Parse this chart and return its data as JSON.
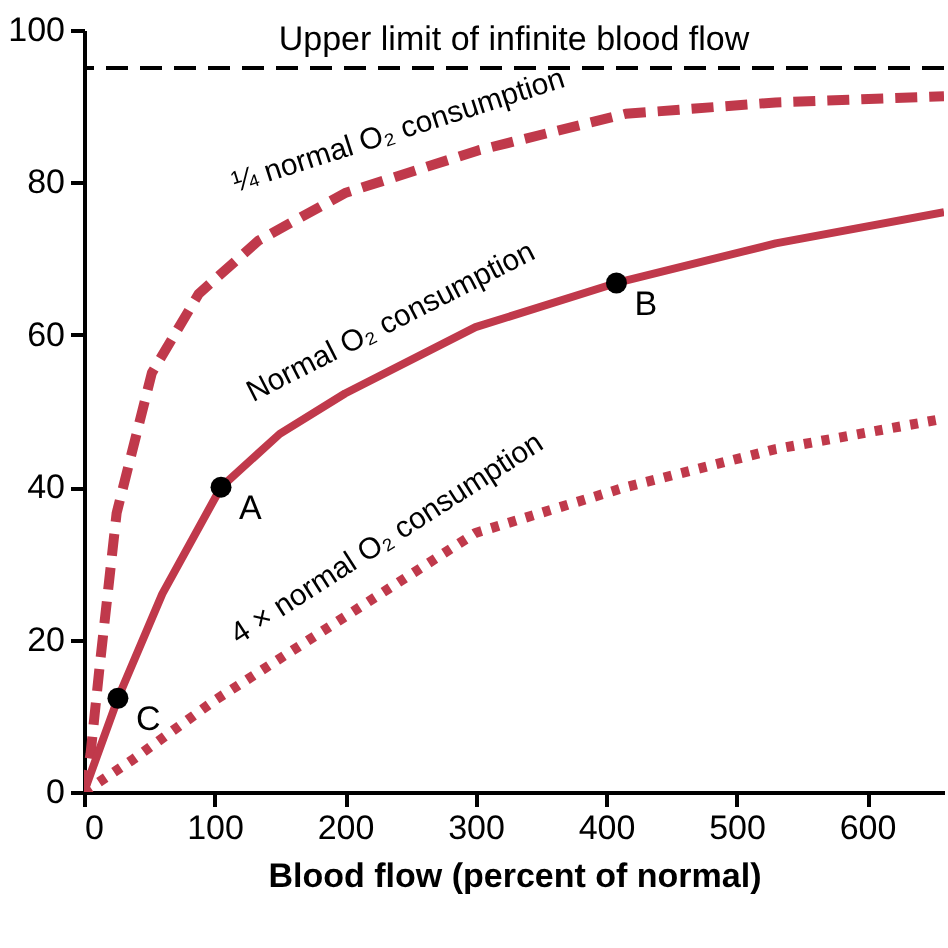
{
  "chart_data": {
    "type": "line",
    "xlabel": "Blood flow (percent of normal)",
    "xlim": [
      0,
      659
    ],
    "ylim": [
      0,
      100
    ],
    "xticks": [
      0,
      100,
      200,
      300,
      400,
      500,
      600
    ],
    "yticks": [
      0,
      20,
      40,
      60,
      80,
      100
    ],
    "grid": false,
    "series": [
      {
        "name": "¼ normal O₂ consumption",
        "color": "#c0394b",
        "line_style": "dashed",
        "x": [
          0,
          5,
          12,
          25,
          52,
          88,
          134,
          200,
          302,
          415,
          530,
          659
        ],
        "values": [
          0,
          5,
          16.5,
          36.6,
          55,
          65.4,
          72.4,
          78.6,
          84.2,
          89,
          90.5,
          91.3
        ]
      },
      {
        "name": "Normal O₂ consumption",
        "color": "#c0394b",
        "line_style": "solid",
        "x": [
          0,
          26,
          60,
          105,
          150,
          200,
          300,
          408,
          530,
          659
        ],
        "values": [
          0,
          12.3,
          26,
          40,
          47,
          52.3,
          61,
          66.8,
          72,
          76.1
        ]
      },
      {
        "name": "4 × normal O₂ consumption",
        "color": "#c0394b",
        "line_style": "dotted",
        "x": [
          0,
          37,
          100,
          200,
          300,
          415,
          530,
          659
        ],
        "values": [
          0,
          4.2,
          12,
          23,
          34,
          40,
          45,
          49
        ]
      },
      {
        "type": "scatter",
        "color": "#000000",
        "marker": "circle",
        "x": [
          26,
          105,
          408
        ],
        "values": [
          12.3,
          40,
          66.8
        ]
      }
    ],
    "ref_lines": [
      {
        "axis": "y",
        "value": 95,
        "label": "Upper limit of infinite blood flow",
        "color": "#000000",
        "line_style": "dashed"
      }
    ],
    "annotations": [
      {
        "text": "C",
        "x": 26,
        "y": 12.3
      },
      {
        "text": "A",
        "x": 105,
        "y": 40
      },
      {
        "text": "B",
        "x": 408,
        "y": 66.8
      }
    ]
  }
}
